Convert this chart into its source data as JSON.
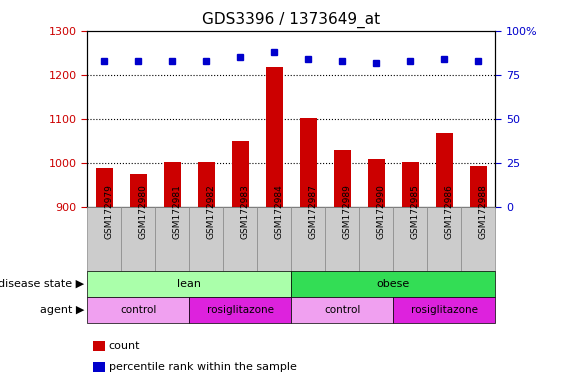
{
  "title": "GDS3396 / 1373649_at",
  "samples": [
    "GSM172979",
    "GSM172980",
    "GSM172981",
    "GSM172982",
    "GSM172983",
    "GSM172984",
    "GSM172987",
    "GSM172989",
    "GSM172990",
    "GSM172985",
    "GSM172986",
    "GSM172988"
  ],
  "bar_values": [
    990,
    975,
    1002,
    1002,
    1050,
    1218,
    1102,
    1030,
    1010,
    1003,
    1068,
    993
  ],
  "dot_values": [
    83,
    83,
    83,
    83,
    85,
    88,
    84,
    83,
    82,
    83,
    84,
    83
  ],
  "ylim_left": [
    900,
    1300
  ],
  "ylim_right": [
    0,
    100
  ],
  "yticks_left": [
    900,
    1000,
    1100,
    1200,
    1300
  ],
  "yticks_right": [
    0,
    25,
    50,
    75,
    100
  ],
  "ytick_labels_right": [
    "0",
    "25",
    "50",
    "75",
    "100%"
  ],
  "bar_color": "#cc0000",
  "dot_color": "#0000cc",
  "bar_width": 0.5,
  "disease_state_groups": [
    {
      "label": "lean",
      "start": 0,
      "end": 6,
      "color": "#aaffaa"
    },
    {
      "label": "obese",
      "start": 6,
      "end": 12,
      "color": "#33dd55"
    }
  ],
  "agent_groups": [
    {
      "label": "control",
      "start": 0,
      "end": 3,
      "color": "#f0a0f0"
    },
    {
      "label": "rosiglitazone",
      "start": 3,
      "end": 6,
      "color": "#dd22dd"
    },
    {
      "label": "control",
      "start": 6,
      "end": 9,
      "color": "#f0a0f0"
    },
    {
      "label": "rosiglitazone",
      "start": 9,
      "end": 12,
      "color": "#dd22dd"
    }
  ],
  "legend_items": [
    {
      "label": "count",
      "color": "#cc0000",
      "marker": "s"
    },
    {
      "label": "percentile rank within the sample",
      "color": "#0000cc",
      "marker": "s"
    }
  ],
  "disease_state_label": "disease state",
  "agent_label": "agent",
  "dotted_grid_lines": [
    1000,
    1100,
    1200
  ],
  "tick_bg_color": "#cccccc",
  "main_bg_color": "#ffffff"
}
